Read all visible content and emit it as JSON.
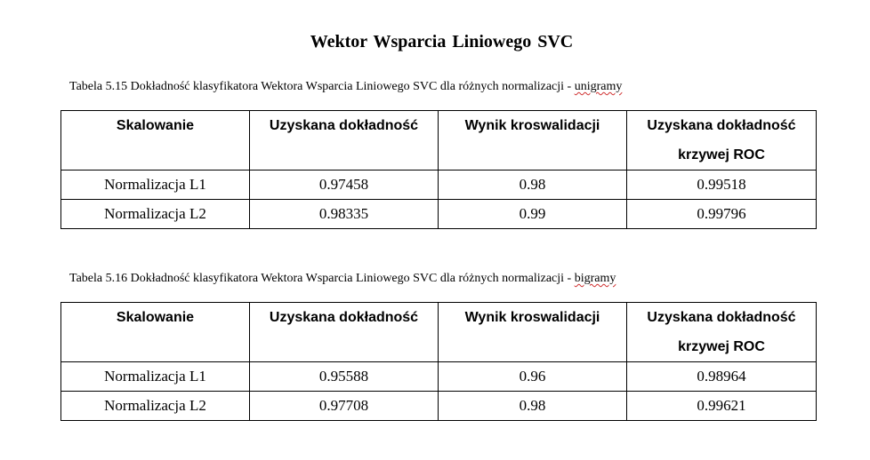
{
  "title": "Wektor Wsparcia  Liniowego SVC",
  "tables": [
    {
      "caption_prefix": "Tabela 5.15 Dokładność klasyfikatora Wektora Wsparcia Liniowego SVC dla różnych normalizacji - ",
      "caption_suffix": "unigramy",
      "headers": [
        "Skalowanie",
        "Uzyskana dokładność",
        "Wynik kroswalidacji",
        "Uzyskana dokładność krzywej ROC"
      ],
      "rows": [
        [
          "Normalizacja  L1",
          "0.97458",
          "0.98",
          "0.99518"
        ],
        [
          "Normalizacja  L2",
          "0.98335",
          "0.99",
          "0.99796"
        ]
      ]
    },
    {
      "caption_prefix": "Tabela 5.16 Dokładność klasyfikatora Wektora Wsparcia Liniowego SVC dla różnych normalizacji - ",
      "caption_suffix": "bigramy",
      "headers": [
        "Skalowanie",
        "Uzyskana dokładność",
        "Wynik kroswalidacji",
        "Uzyskana dokładność krzywej ROC"
      ],
      "rows": [
        [
          "Normalizacja  L1",
          "0.95588",
          "0.96",
          "0.98964"
        ],
        [
          "Normalizacja  L2",
          "0.97708",
          "0.98",
          "0.99621"
        ]
      ]
    }
  ]
}
